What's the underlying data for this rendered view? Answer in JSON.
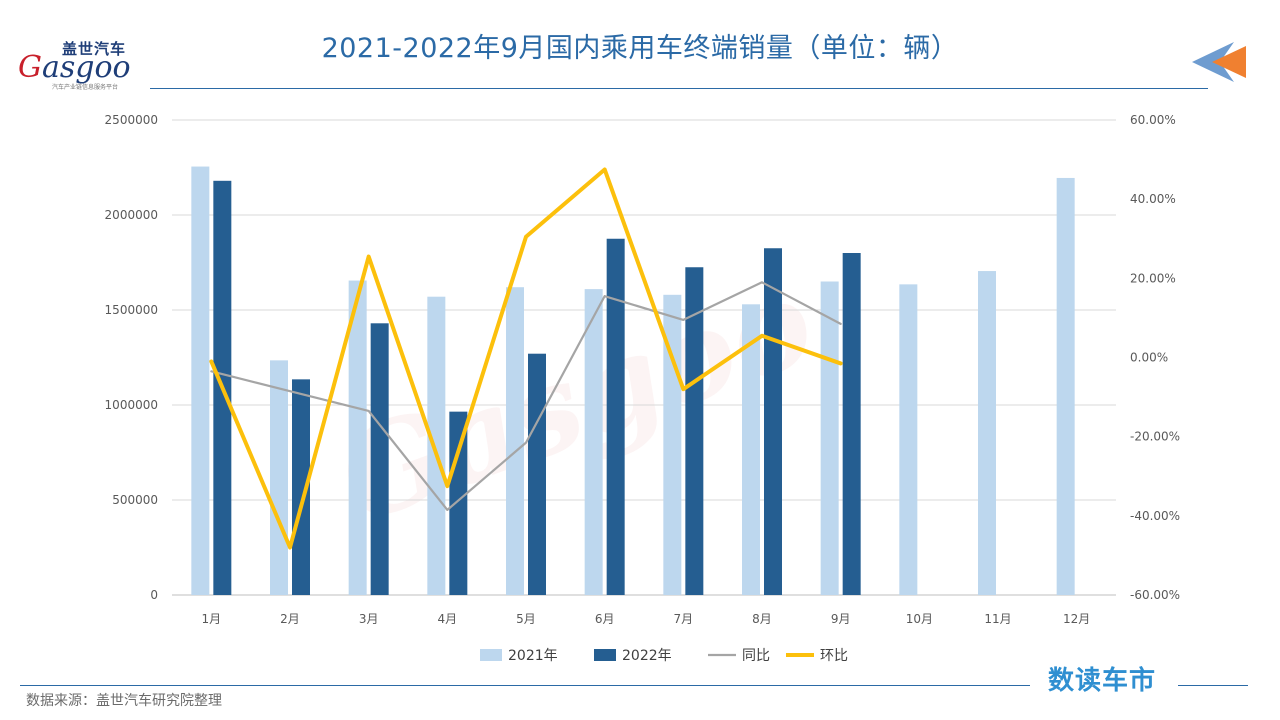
{
  "logo": {
    "cn": "盖世汽车",
    "en_g": "G",
    "en_rest": "asgoo",
    "sub": "汽车产业链信息服务平台"
  },
  "watermark": "Gasgoo",
  "footer": {
    "source": "数据来源：盖世汽车研究院整理",
    "brand": "数读车市"
  },
  "colors": {
    "bar2021": "#bdd7ee",
    "bar2022": "#255e91",
    "yoy": "#a5a5a5",
    "mom": "#fcc00c",
    "grid": "#d9d9d9",
    "axis_text": "#595959"
  },
  "chart_data": {
    "type": "bar",
    "title": "2021-2022年9月国内乘用车终端销量（单位：辆）",
    "categories": [
      "1月",
      "2月",
      "3月",
      "4月",
      "5月",
      "6月",
      "7月",
      "8月",
      "9月",
      "10月",
      "11月",
      "12月"
    ],
    "series": [
      {
        "name": "2021年",
        "type": "bar",
        "axis": "left",
        "values": [
          2255000,
          1235000,
          1655000,
          1570000,
          1620000,
          1610000,
          1580000,
          1530000,
          1650000,
          1635000,
          1705000,
          2195000
        ]
      },
      {
        "name": "2022年",
        "type": "bar",
        "axis": "left",
        "values": [
          2180000,
          1135000,
          1430000,
          965000,
          1270000,
          1875000,
          1725000,
          1825000,
          1800000,
          null,
          null,
          null
        ]
      },
      {
        "name": "同比",
        "type": "line",
        "axis": "right",
        "values": [
          -3.5,
          -8.5,
          -13.5,
          -38.5,
          -21.5,
          15.5,
          9.5,
          19.0,
          8.5,
          null,
          null,
          null
        ]
      },
      {
        "name": "环比",
        "type": "line",
        "axis": "right",
        "values": [
          -1.0,
          -48.0,
          25.5,
          -32.5,
          30.5,
          47.5,
          -8.0,
          5.5,
          -1.5,
          null,
          null,
          null
        ]
      }
    ],
    "left_axis": {
      "min": 0,
      "max": 2500000,
      "ticks": [
        0,
        500000,
        1000000,
        1500000,
        2000000,
        2500000
      ],
      "tick_labels": [
        "0",
        "500000",
        "1000000",
        "1500000",
        "2000000",
        "2500000"
      ]
    },
    "right_axis": {
      "min": -60,
      "max": 60,
      "ticks": [
        -60,
        -40,
        -20,
        0,
        20,
        40,
        60
      ],
      "tick_labels": [
        "-60.00%",
        "-40.00%",
        "-20.00%",
        "0.00%",
        "20.00%",
        "40.00%",
        "60.00%"
      ]
    },
    "legend": [
      "2021年",
      "2022年",
      "同比",
      "环比"
    ],
    "legend_position": "bottom",
    "grid": true
  }
}
